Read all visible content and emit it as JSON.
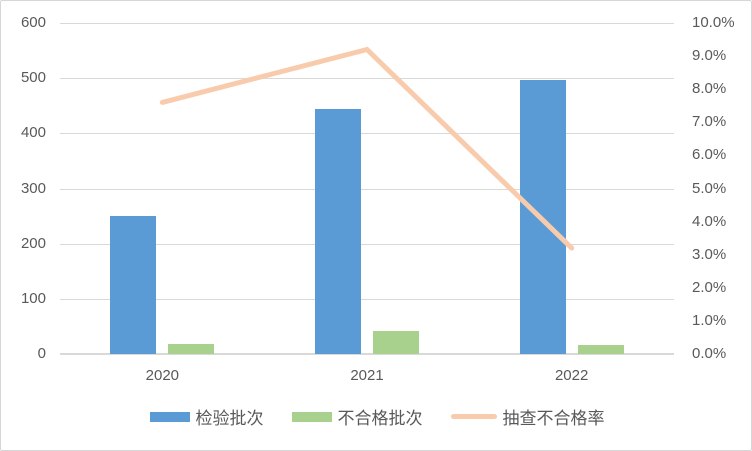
{
  "chart_data": {
    "type": "bar",
    "subtype": "combo-bar-line",
    "title": "",
    "categories": [
      "2020",
      "2021",
      "2022"
    ],
    "series": [
      {
        "name": "检验批次",
        "type": "bar",
        "axis": "left",
        "color": "#5B9BD5",
        "values": [
          250,
          445,
          497
        ]
      },
      {
        "name": "不合格批次",
        "type": "bar",
        "axis": "left",
        "color": "#A9D18E",
        "values": [
          19,
          41,
          16
        ]
      },
      {
        "name": "抽查不合格率",
        "type": "line",
        "axis": "right",
        "color": "#F8CBAD",
        "values": [
          7.6,
          9.2,
          3.2
        ],
        "unit": "%"
      }
    ],
    "left_axis": {
      "min": 0,
      "max": 600,
      "step": 100,
      "tick_labels": [
        "600",
        "500",
        "400",
        "300",
        "200",
        "100",
        "0"
      ]
    },
    "right_axis": {
      "min": 0,
      "max": 10,
      "step": 1,
      "tick_labels": [
        "10.0%",
        "9.0%",
        "8.0%",
        "7.0%",
        "6.0%",
        "5.0%",
        "4.0%",
        "3.0%",
        "2.0%",
        "1.0%",
        "0.0%"
      ]
    },
    "grid": true,
    "legend_position": "bottom"
  },
  "legend": {
    "items": [
      {
        "label": "检验批次",
        "swatch": "bar",
        "color": "#5B9BD5"
      },
      {
        "label": "不合格批次",
        "swatch": "bar",
        "color": "#A9D18E"
      },
      {
        "label": "抽查不合格率",
        "swatch": "line",
        "color": "#F8CBAD"
      }
    ]
  },
  "colors": {
    "grid": "#d9d9d9",
    "axis_text": "#595959",
    "background": "#ffffff"
  }
}
